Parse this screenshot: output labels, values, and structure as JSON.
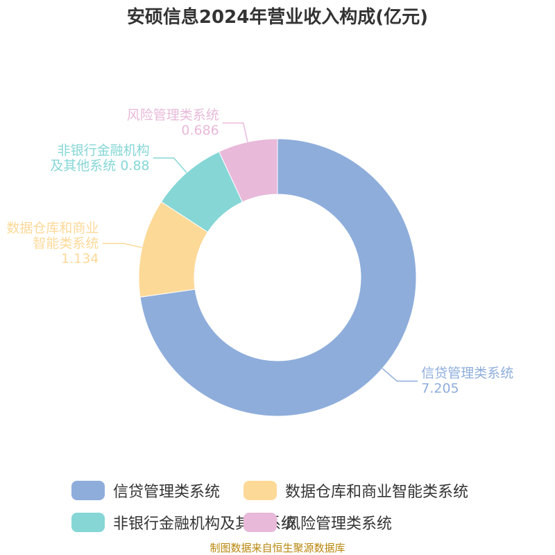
{
  "chart_data": {
    "type": "donut",
    "title": "安硕信息2024年营业收入构成(亿元)",
    "categories": [
      "信贷管理类系统",
      "数据仓库和商业智能类系统",
      "非银行金融机构及其他系统",
      "风险管理类系统"
    ],
    "values": [
      7.205,
      1.134,
      0.88,
      0.686
    ],
    "colors": [
      "#8eaddb",
      "#fdd998",
      "#86d6d6",
      "#e8b9d9"
    ],
    "source": "制图数据来自恒生聚源数据库"
  }
}
